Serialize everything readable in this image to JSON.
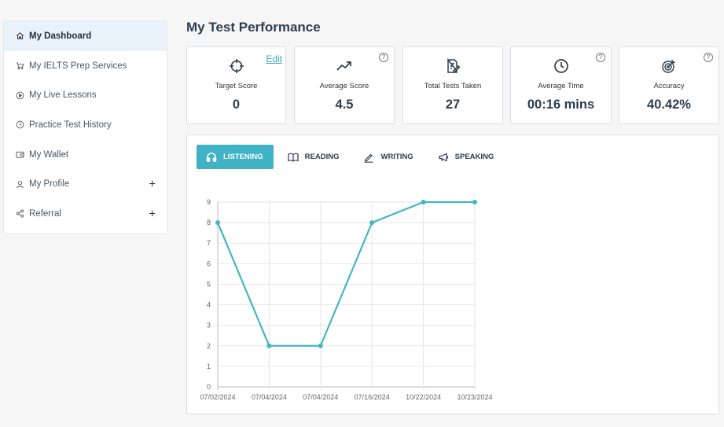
{
  "sidebar": {
    "items": [
      {
        "label": "My Dashboard",
        "icon": "home-icon",
        "active": true
      },
      {
        "label": "My IELTS Prep Services",
        "icon": "cart-icon"
      },
      {
        "label": "My Live Lessons",
        "icon": "play-circle-icon"
      },
      {
        "label": "Practice Test History",
        "icon": "clock-icon"
      },
      {
        "label": "My Wallet",
        "icon": "wallet-icon"
      },
      {
        "label": "My Profile",
        "icon": "user-icon",
        "expand": "+"
      },
      {
        "label": "Referral",
        "icon": "share-icon",
        "expand": "+"
      }
    ]
  },
  "main": {
    "title": "My Test Performance",
    "cards": [
      {
        "label": "Target Score",
        "value": "0",
        "icon": "crosshair-icon",
        "edit": "Edit"
      },
      {
        "label": "Average Score",
        "value": "4.5",
        "icon": "trending-up-icon",
        "help": "?"
      },
      {
        "label": "Total Tests Taken",
        "value": "27",
        "icon": "document-edit-icon"
      },
      {
        "label": "Average Time",
        "value": "00:16 mins",
        "icon": "clock-icon",
        "help": "?"
      },
      {
        "label": "Accuracy",
        "value": "40.42%",
        "icon": "target-arrow-icon",
        "help": "?"
      }
    ],
    "tabs": [
      {
        "label": "LISTENING",
        "icon": "headphones-icon",
        "active": true
      },
      {
        "label": "READING",
        "icon": "book-icon"
      },
      {
        "label": "WRITING",
        "icon": "pencil-icon"
      },
      {
        "label": "SPEAKING",
        "icon": "megaphone-icon"
      }
    ]
  },
  "colors": {
    "accent": "#3fb2c6",
    "line": "#45b5c4",
    "title": "#2c3e50",
    "active_nav_bg": "#e9f1fb"
  },
  "chart_data": {
    "type": "line",
    "x": [
      "07/02/2024",
      "07/04/2024",
      "07/04/2024",
      "07/16/2024",
      "10/22/2024",
      "10/23/2024"
    ],
    "values": [
      8,
      2,
      2,
      8,
      9,
      9
    ],
    "ylim": [
      0,
      9
    ],
    "yticks": [
      "0",
      "1",
      "2",
      "3",
      "4",
      "5",
      "6",
      "7",
      "8",
      "9"
    ],
    "grid": true
  }
}
